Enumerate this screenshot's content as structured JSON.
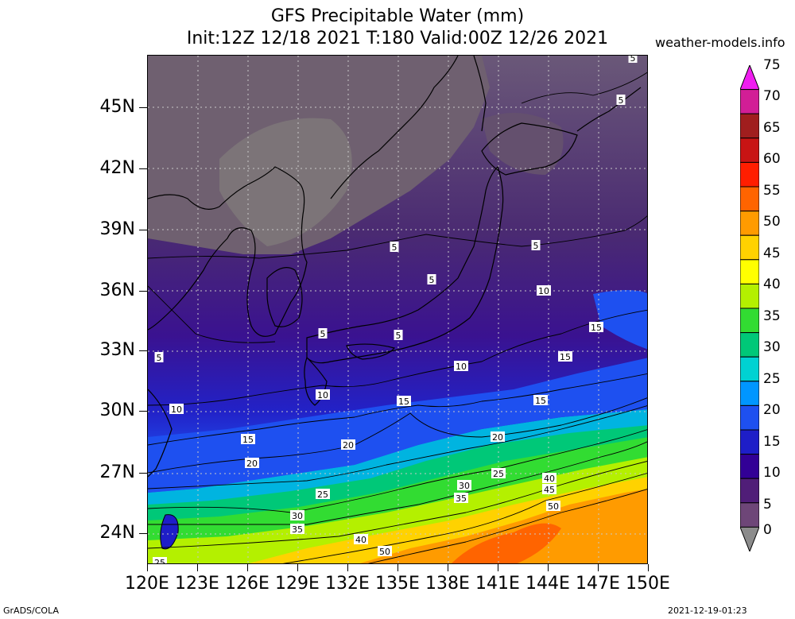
{
  "title": {
    "line1": "GFS Precipitable Water (mm)",
    "line2": "Init:12Z 12/18 2021 T:180 Valid:00Z 12/26 2021"
  },
  "site": "weather-models.info",
  "footer": {
    "left": "GrADS/COLA",
    "right": "2021-12-19-01:23"
  },
  "axes": {
    "y_labels": [
      "45N",
      "42N",
      "39N",
      "36N",
      "33N",
      "30N",
      "27N",
      "24N"
    ],
    "x_labels": [
      "120E",
      "123E",
      "126E",
      "129E",
      "132E",
      "135E",
      "138E",
      "141E",
      "144E",
      "147E",
      "150E"
    ]
  },
  "colorbar": {
    "labels": [
      "75",
      "70",
      "65",
      "60",
      "55",
      "50",
      "45",
      "40",
      "35",
      "30",
      "25",
      "20",
      "15",
      "10",
      "5",
      "0"
    ],
    "colors": [
      "#f01ef0",
      "#d21e96",
      "#a01e1e",
      "#c81414",
      "#ff1e00",
      "#ff6400",
      "#ff9b00",
      "#ffd200",
      "#ffff00",
      "#b4f000",
      "#32dc32",
      "#00c878",
      "#00d2d2",
      "#0096ff",
      "#1e50f0",
      "#1e1ec8",
      "#320096",
      "#501e78",
      "#6e4678",
      "#8c8c8c"
    ],
    "unit": "mm"
  },
  "contours": {
    "labels": [
      {
        "v": "5"
      },
      {
        "v": "5"
      },
      {
        "v": "5"
      },
      {
        "v": "5"
      },
      {
        "v": "5"
      },
      {
        "v": "5"
      },
      {
        "v": "5"
      },
      {
        "v": "5"
      },
      {
        "v": "10"
      },
      {
        "v": "10"
      },
      {
        "v": "10"
      },
      {
        "v": "10"
      },
      {
        "v": "15"
      },
      {
        "v": "15"
      },
      {
        "v": "15"
      },
      {
        "v": "15"
      },
      {
        "v": "15"
      },
      {
        "v": "20"
      },
      {
        "v": "20"
      },
      {
        "v": "20"
      },
      {
        "v": "25"
      },
      {
        "v": "25"
      },
      {
        "v": "25"
      },
      {
        "v": "30"
      },
      {
        "v": "30"
      },
      {
        "v": "35"
      },
      {
        "v": "35"
      },
      {
        "v": "40"
      },
      {
        "v": "40"
      },
      {
        "v": "45"
      },
      {
        "v": "50"
      },
      {
        "v": "50"
      }
    ]
  }
}
